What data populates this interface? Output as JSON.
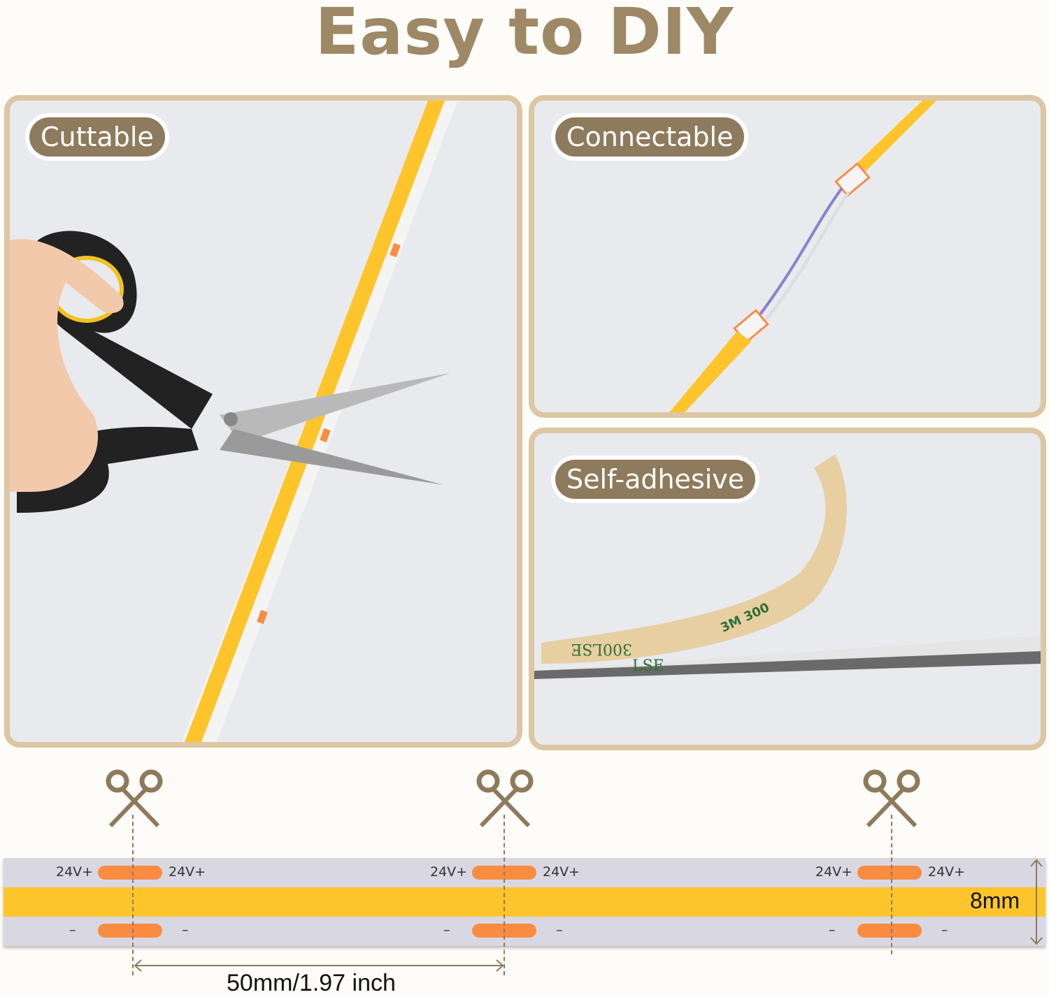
{
  "title": "Easy to DIY",
  "panels": {
    "cuttable": "Cuttable",
    "connectable": "Connectable",
    "self_adhesive": "Self-adhesive"
  },
  "tape_print": {
    "a": "3M 300",
    "b": "300LSE",
    "c": "LSE"
  },
  "diagram": {
    "positive_label": "24V+",
    "negative_label": "–",
    "width_label": "8mm",
    "spacing_label": "50mm/1.97 inch"
  },
  "colors": {
    "title": "#9e8866",
    "led": "#fdc52b",
    "pad": "#f98c41",
    "border": "#dcc6a3",
    "badge": "#8e7a5c"
  }
}
